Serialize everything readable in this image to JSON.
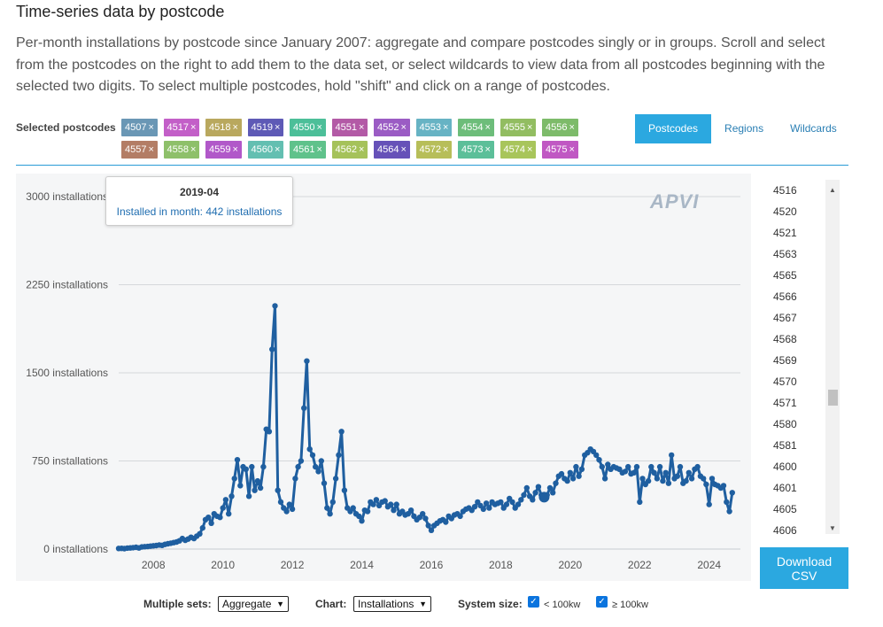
{
  "title": "Time-series data by postcode",
  "description": "Per-month installations by postcode since January 2007: aggregate and compare postcodes singly or in groups. Scroll and select from the postcodes on the right to add them to the data set, or select wildcards to view data from all postcodes beginning with the selected two digits. To select multiple postcodes, hold \"shift\" and click on a range of postcodes.",
  "selected_label": "Selected postcodes",
  "chips": [
    {
      "code": "4507",
      "color": "#6a97b5"
    },
    {
      "code": "4517",
      "color": "#c35fc8"
    },
    {
      "code": "4518",
      "color": "#b9a85e"
    },
    {
      "code": "4519",
      "color": "#5e5ab6"
    },
    {
      "code": "4550",
      "color": "#4cbf99"
    },
    {
      "code": "4551",
      "color": "#b35aa6"
    },
    {
      "code": "4552",
      "color": "#9b5cc4"
    },
    {
      "code": "4553",
      "color": "#67b3c4"
    },
    {
      "code": "4554",
      "color": "#6dbd7a"
    },
    {
      "code": "4555",
      "color": "#92bd61"
    },
    {
      "code": "4556",
      "color": "#7dbb6a"
    },
    {
      "code": "4557",
      "color": "#b37d65"
    },
    {
      "code": "4558",
      "color": "#8ec06a"
    },
    {
      "code": "4559",
      "color": "#b158c9"
    },
    {
      "code": "4560",
      "color": "#63bfb1"
    },
    {
      "code": "4561",
      "color": "#5fc28b"
    },
    {
      "code": "4562",
      "color": "#a5c25a"
    },
    {
      "code": "4564",
      "color": "#6651b8"
    },
    {
      "code": "4572",
      "color": "#b7be59"
    },
    {
      "code": "4573",
      "color": "#5cbf99"
    },
    {
      "code": "4574",
      "color": "#a8c55b"
    },
    {
      "code": "4575",
      "color": "#c058c3"
    }
  ],
  "tabs": [
    {
      "label": "Postcodes",
      "active": true
    },
    {
      "label": "Regions",
      "active": false
    },
    {
      "label": "Wildcards",
      "active": false
    }
  ],
  "tooltip": {
    "date": "2019-04",
    "text": "Installed in month: 442 installations"
  },
  "logo": "APVI",
  "postcode_list": [
    "4516",
    "4520",
    "4521",
    "4563",
    "4565",
    "4566",
    "4567",
    "4568",
    "4569",
    "4570",
    "4571",
    "4580",
    "4581",
    "4600",
    "4601",
    "4605",
    "4606"
  ],
  "download_label_1": "Download",
  "download_label_2": "CSV",
  "controls": {
    "multiple_sets_label": "Multiple sets:",
    "multiple_sets_value": "Aggregate",
    "chart_label": "Chart:",
    "chart_value": "Installations",
    "system_size_label": "System size:",
    "size_small_label": "< 100kw",
    "size_small_checked": true,
    "size_large_label": "≥ 100kw",
    "size_large_checked": true
  },
  "chart_data": {
    "type": "line",
    "title": "",
    "xlabel": "",
    "ylabel": "",
    "color": "#1f5fa0",
    "ylim": [
      0,
      3000
    ],
    "xlim": [
      2007.0,
      2024.9
    ],
    "y_ticks": [
      0,
      750,
      1500,
      2250,
      3000
    ],
    "y_tick_labels": [
      "0 installations",
      "750 installations",
      "1500 installations",
      "2250 installations",
      "3000 installations"
    ],
    "x_ticks": [
      2008,
      2010,
      2012,
      2014,
      2016,
      2018,
      2020,
      2022,
      2024
    ],
    "x_tick_labels": [
      "2008",
      "2010",
      "2012",
      "2014",
      "2016",
      "2018",
      "2020",
      "2022",
      "2024"
    ],
    "highlight": {
      "x": "2019-04",
      "y": 442
    },
    "x": [
      "2007-01",
      "2007-02",
      "2007-03",
      "2007-04",
      "2007-05",
      "2007-06",
      "2007-07",
      "2007-08",
      "2007-09",
      "2007-10",
      "2007-11",
      "2007-12",
      "2008-01",
      "2008-02",
      "2008-03",
      "2008-04",
      "2008-05",
      "2008-06",
      "2008-07",
      "2008-08",
      "2008-09",
      "2008-10",
      "2008-11",
      "2008-12",
      "2009-01",
      "2009-02",
      "2009-03",
      "2009-04",
      "2009-05",
      "2009-06",
      "2009-07",
      "2009-08",
      "2009-09",
      "2009-10",
      "2009-11",
      "2009-12",
      "2010-01",
      "2010-02",
      "2010-03",
      "2010-04",
      "2010-05",
      "2010-06",
      "2010-07",
      "2010-08",
      "2010-09",
      "2010-10",
      "2010-11",
      "2010-12",
      "2011-01",
      "2011-02",
      "2011-03",
      "2011-04",
      "2011-05",
      "2011-06",
      "2011-07",
      "2011-08",
      "2011-09",
      "2011-10",
      "2011-11",
      "2011-12",
      "2012-01",
      "2012-02",
      "2012-03",
      "2012-04",
      "2012-05",
      "2012-06",
      "2012-07",
      "2012-08",
      "2012-09",
      "2012-10",
      "2012-11",
      "2012-12",
      "2013-01",
      "2013-02",
      "2013-03",
      "2013-04",
      "2013-05",
      "2013-06",
      "2013-07",
      "2013-08",
      "2013-09",
      "2013-10",
      "2013-11",
      "2013-12",
      "2014-01",
      "2014-02",
      "2014-03",
      "2014-04",
      "2014-05",
      "2014-06",
      "2014-07",
      "2014-08",
      "2014-09",
      "2014-10",
      "2014-11",
      "2014-12",
      "2015-01",
      "2015-02",
      "2015-03",
      "2015-04",
      "2015-05",
      "2015-06",
      "2015-07",
      "2015-08",
      "2015-09",
      "2015-10",
      "2015-11",
      "2015-12",
      "2016-01",
      "2016-02",
      "2016-03",
      "2016-04",
      "2016-05",
      "2016-06",
      "2016-07",
      "2016-08",
      "2016-09",
      "2016-10",
      "2016-11",
      "2016-12",
      "2017-01",
      "2017-02",
      "2017-03",
      "2017-04",
      "2017-05",
      "2017-06",
      "2017-07",
      "2017-08",
      "2017-09",
      "2017-10",
      "2017-11",
      "2017-12",
      "2018-01",
      "2018-02",
      "2018-03",
      "2018-04",
      "2018-05",
      "2018-06",
      "2018-07",
      "2018-08",
      "2018-09",
      "2018-10",
      "2018-11",
      "2018-12",
      "2019-01",
      "2019-02",
      "2019-03",
      "2019-04",
      "2019-05",
      "2019-06",
      "2019-07",
      "2019-08",
      "2019-09",
      "2019-10",
      "2019-11",
      "2019-12",
      "2020-01",
      "2020-02",
      "2020-03",
      "2020-04",
      "2020-05",
      "2020-06",
      "2020-07",
      "2020-08",
      "2020-09",
      "2020-10",
      "2020-11",
      "2020-12",
      "2021-01",
      "2021-02",
      "2021-03",
      "2021-04",
      "2021-05",
      "2021-06",
      "2021-07",
      "2021-08",
      "2021-09",
      "2021-10",
      "2021-11",
      "2021-12",
      "2022-01",
      "2022-02",
      "2022-03",
      "2022-04",
      "2022-05",
      "2022-06",
      "2022-07",
      "2022-08",
      "2022-09",
      "2022-10",
      "2022-11",
      "2022-12",
      "2023-01",
      "2023-02",
      "2023-03",
      "2023-04",
      "2023-05",
      "2023-06",
      "2023-07",
      "2023-08",
      "2023-09",
      "2023-10",
      "2023-11",
      "2023-12",
      "2024-01",
      "2024-02",
      "2024-03",
      "2024-04",
      "2024-05",
      "2024-06",
      "2024-07",
      "2024-08",
      "2024-09"
    ],
    "series": [
      {
        "values": [
          5,
          6,
          4,
          8,
          10,
          12,
          15,
          10,
          18,
          20,
          22,
          25,
          28,
          30,
          35,
          32,
          40,
          45,
          50,
          55,
          60,
          70,
          90,
          75,
          85,
          100,
          90,
          110,
          130,
          180,
          250,
          270,
          220,
          300,
          280,
          270,
          350,
          420,
          300,
          450,
          600,
          760,
          540,
          700,
          680,
          450,
          700,
          500,
          580,
          520,
          700,
          1020,
          1000,
          1700,
          2070,
          500,
          400,
          350,
          320,
          380,
          340,
          600,
          700,
          750,
          1200,
          1600,
          850,
          800,
          700,
          660,
          750,
          560,
          350,
          300,
          400,
          600,
          800,
          1000,
          500,
          350,
          320,
          350,
          300,
          280,
          240,
          330,
          320,
          400,
          380,
          420,
          370,
          400,
          410,
          360,
          380,
          330,
          380,
          300,
          320,
          290,
          300,
          330,
          280,
          250,
          270,
          300,
          260,
          200,
          160,
          200,
          220,
          240,
          250,
          230,
          280,
          260,
          290,
          300,
          280,
          320,
          340,
          350,
          330,
          360,
          400,
          370,
          340,
          390,
          350,
          400,
          380,
          390,
          400,
          350,
          380,
          430,
          400,
          350,
          380,
          420,
          460,
          520,
          450,
          420,
          480,
          530,
          460,
          442,
          460,
          520,
          480,
          560,
          620,
          640,
          600,
          580,
          650,
          600,
          700,
          620,
          680,
          800,
          820,
          850,
          830,
          800,
          760,
          700,
          600,
          720,
          680,
          700,
          690,
          680,
          650,
          660,
          700,
          640,
          650,
          700,
          400,
          600,
          550,
          580,
          700,
          650,
          600,
          700,
          580,
          650,
          560,
          800,
          600,
          620,
          700,
          560,
          580,
          650,
          600,
          680,
          700,
          620,
          600,
          550,
          380,
          600,
          550,
          540,
          520,
          540,
          400,
          320,
          480
        ]
      }
    ]
  }
}
